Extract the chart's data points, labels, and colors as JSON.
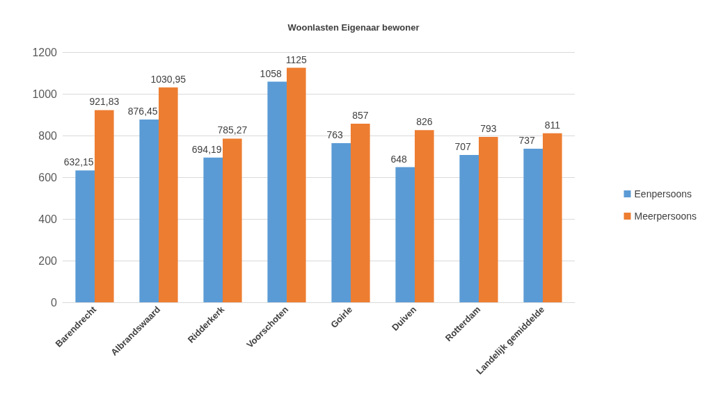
{
  "chart_data": {
    "type": "bar",
    "title": "Woonlasten Eigenaar bewoner",
    "categories": [
      "Barendrecht",
      "Albrandswaard",
      "Ridderkerk",
      "Voorschoten",
      "Goirle",
      "Duiven",
      "Rotterdam",
      "Landelijk gemiddelde"
    ],
    "series": [
      {
        "name": "Eenpersoons",
        "color": "#5b9bd5",
        "values": [
          632.15,
          876.45,
          694.19,
          1058,
          763,
          648,
          707,
          737
        ],
        "value_labels": [
          "632,15",
          "876,45",
          "694,19",
          "1058",
          "763",
          "648",
          "707",
          "737"
        ]
      },
      {
        "name": "Meerpersoons",
        "color": "#ed7d31",
        "values": [
          921.83,
          1030.95,
          785.27,
          1125,
          857,
          826,
          793,
          811
        ],
        "value_labels": [
          "921,83",
          "1030,95",
          "785,27",
          "1125",
          "857",
          "826",
          "793",
          "811"
        ]
      }
    ],
    "ylim": [
      0,
      1200
    ],
    "yticks": [
      0,
      200,
      400,
      600,
      800,
      1000,
      1200
    ],
    "grid": "y",
    "legend": "right"
  }
}
